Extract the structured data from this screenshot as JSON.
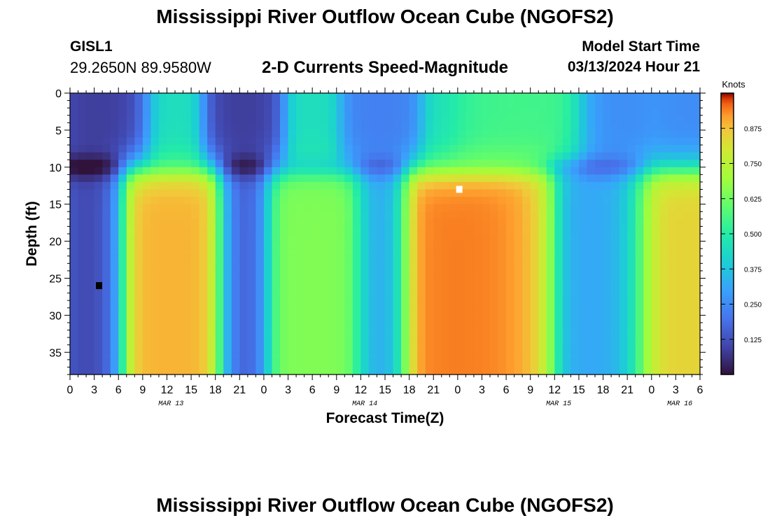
{
  "header": {
    "title": "Mississippi River Outflow Ocean Cube (NGOFS2)",
    "station": "GISL1",
    "coords": "29.2650N  89.9580W",
    "subtitle": "2-D Currents Speed-Magnitude",
    "model_start_label": "Model Start Time",
    "model_start_value": "03/13/2024 Hour 21"
  },
  "footer": {
    "title": "Mississippi River Outflow Ocean Cube (NGOFS2)"
  },
  "chart_data": {
    "type": "heatmap",
    "xlabel": "Forecast Time(Z)",
    "ylabel": "Depth (ft)",
    "x_range_hours": [
      0,
      78
    ],
    "y_range_ft": [
      0,
      38
    ],
    "y_inverted": true,
    "x_tick_labels": [
      "0",
      "3",
      "6",
      "9",
      "12",
      "15",
      "18",
      "21",
      "0",
      "3",
      "6",
      "9",
      "12",
      "15",
      "18",
      "21",
      "0",
      "3",
      "6",
      "9",
      "12",
      "15",
      "18",
      "21",
      "0",
      "3",
      "6"
    ],
    "y_ticks": [
      0,
      5,
      10,
      15,
      20,
      25,
      30,
      35
    ],
    "date_labels": [
      {
        "text": "MAR 13",
        "hour": 12.5
      },
      {
        "text": "MAR 14",
        "hour": 36.5
      },
      {
        "text": "MAR 15",
        "hour": 60.5
      },
      {
        "text": "MAR 16",
        "hour": 75.5
      }
    ],
    "colorbar": {
      "label": "Knots",
      "range": [
        0,
        1.0
      ],
      "ticks": [
        "0.125",
        "0.250",
        "0.375",
        "0.500",
        "0.625",
        "0.750",
        "0.875"
      ],
      "tick_values": [
        0.125,
        0.25,
        0.375,
        0.5,
        0.625,
        0.75,
        0.875
      ]
    },
    "surface_features": [
      {
        "hour": 3.5,
        "value": 0.08,
        "width": 3.0
      },
      {
        "hour": 21.5,
        "value": 0.08,
        "width": 2.5
      },
      {
        "hour": 38.5,
        "value": 0.22,
        "width": 2.5
      },
      {
        "hour": 57.8,
        "value": 0.55,
        "width": 5.0
      },
      {
        "hour": 67.0,
        "value": 0.25,
        "width": 3.5
      },
      {
        "hour": 77.0,
        "value": 0.25,
        "width": 3.0
      }
    ],
    "deep_features": [
      {
        "hour": 3.5,
        "value": 0.08,
        "width": 2.5
      },
      {
        "hour": 12.8,
        "value": 0.9,
        "width": 5.5
      },
      {
        "hour": 21.5,
        "value": 0.08,
        "width": 2.5
      },
      {
        "hour": 30.5,
        "value": 0.65,
        "width": 5.5
      },
      {
        "hour": 38.5,
        "value": 0.25,
        "width": 2.5
      },
      {
        "hour": 48.0,
        "value": 0.95,
        "width": 6.0
      },
      {
        "hour": 67.0,
        "value": 0.3,
        "width": 3.5
      },
      {
        "hour": 76.0,
        "value": 0.85,
        "width": 5.5
      }
    ],
    "markers": [
      {
        "hour": 3.6,
        "depth": 26,
        "color": "#000000"
      },
      {
        "hour": 48.2,
        "depth": 13,
        "color": "#ffffff"
      }
    ]
  }
}
